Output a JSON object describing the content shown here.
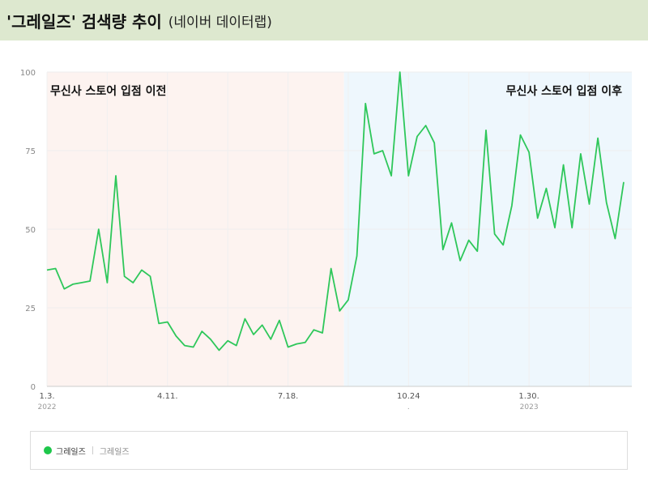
{
  "header": {
    "title": "'그레일즈' 검색량 추이",
    "subtitle": "(네이버 데이터랩)"
  },
  "legend": {
    "series_name": "그레일즈",
    "series_sub": "그레일즈"
  },
  "colors": {
    "line": "#2ec75a",
    "before_region": "#fdf3f0",
    "after_region": "#eef7fd",
    "grid": "#eeeeee",
    "title_bg": "#dde8cf"
  },
  "chart_data": {
    "type": "line",
    "title": "",
    "xlabel": "",
    "ylabel": "",
    "ylim": [
      0,
      100
    ],
    "yticks": [
      "0",
      "25",
      "50",
      "75",
      "100"
    ],
    "xticks": [
      {
        "label": "1.3.",
        "year": "2022",
        "index": 0
      },
      {
        "label": "4.11.",
        "year": "",
        "index": 14
      },
      {
        "label": "7.18.",
        "year": "",
        "index": 28
      },
      {
        "label": "10.24",
        "year": ".",
        "index": 42
      },
      {
        "label": "1.30.",
        "year": "2023",
        "index": 56
      }
    ],
    "annotations": [
      {
        "text": "무신사 스토어 입점 이전",
        "region": "before"
      },
      {
        "text": "무신사 스토어 입점 이후",
        "region": "after"
      }
    ],
    "regions": [
      {
        "name": "before",
        "start_index": 0,
        "end_index": 34.5
      },
      {
        "name": "after",
        "start_index": 34.5,
        "end_index": 69
      }
    ],
    "series": [
      {
        "name": "그레일즈",
        "values": [
          37,
          37.5,
          31,
          32.5,
          33,
          33.5,
          50,
          33,
          67,
          35,
          33,
          37,
          35,
          20,
          20.5,
          16,
          13,
          12.5,
          17.5,
          15,
          11.5,
          14.5,
          13,
          21.5,
          16.5,
          19.5,
          15,
          21,
          12.5,
          13.5,
          14,
          18,
          17,
          37.5,
          24,
          27.5,
          41.5,
          90,
          74,
          75,
          67,
          100,
          67,
          79.5,
          83,
          77.5,
          43.5,
          52,
          40,
          46.5,
          43,
          81.5,
          48.5,
          45,
          57.5,
          80,
          74.5,
          53.5,
          63,
          50.5,
          70.5,
          50.5,
          74,
          58,
          79,
          58.5,
          47,
          65
        ]
      }
    ]
  }
}
